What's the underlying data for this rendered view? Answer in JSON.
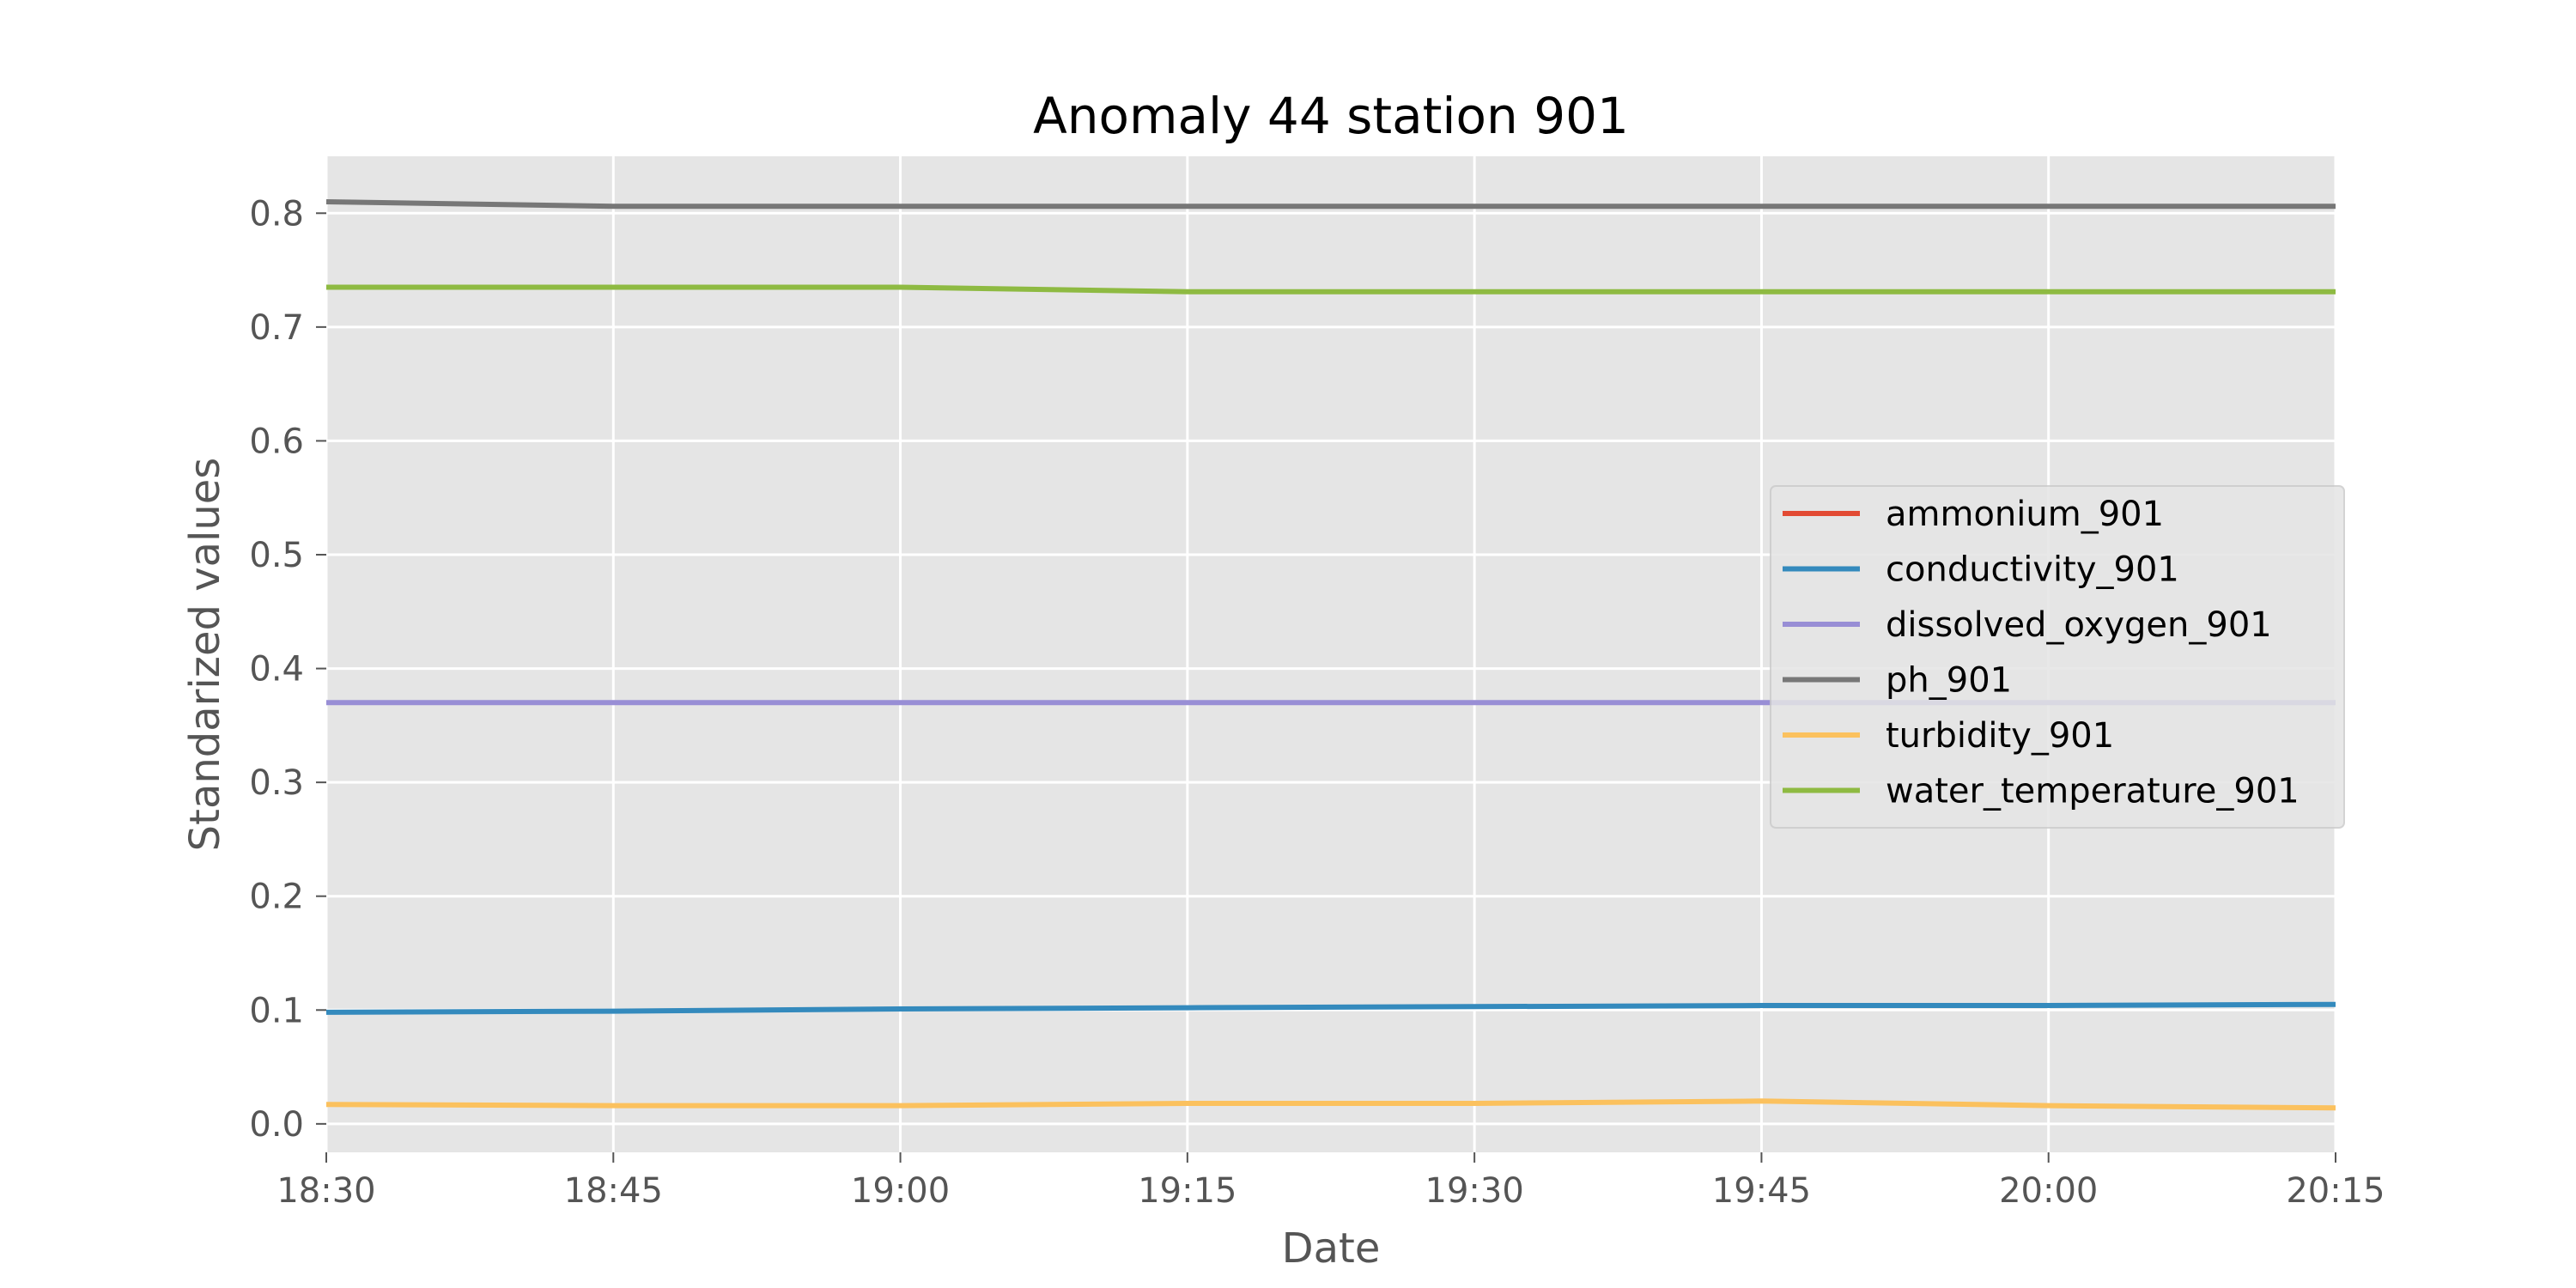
{
  "chart_data": {
    "type": "line",
    "title": "Anomaly 44 station 901",
    "xlabel": "Date",
    "ylabel": "Standarized values",
    "x": [
      "18:30",
      "18:45",
      "19:00",
      "19:15",
      "19:30",
      "19:45",
      "20:00",
      "20:15"
    ],
    "x_ticks": [
      "18:30",
      "18:45",
      "19:00",
      "19:15",
      "19:30",
      "19:45",
      "20:00",
      "20:15"
    ],
    "ylim": [
      -0.025,
      0.85
    ],
    "y_ticks": [
      "0.0",
      "0.1",
      "0.2",
      "0.3",
      "0.4",
      "0.5",
      "0.6",
      "0.7",
      "0.8"
    ],
    "grid": true,
    "legend_position": "center-right",
    "series": [
      {
        "name": "ammonium_901",
        "color": "#E24A33",
        "values": [
          null,
          null,
          null,
          null,
          null,
          null,
          null,
          null
        ]
      },
      {
        "name": "conductivity_901",
        "color": "#348ABD",
        "values": [
          0.098,
          0.099,
          0.101,
          0.102,
          0.103,
          0.104,
          0.104,
          0.105
        ]
      },
      {
        "name": "dissolved_oxygen_901",
        "color": "#988ED5",
        "values": [
          0.37,
          0.37,
          0.37,
          0.37,
          0.37,
          0.37,
          0.37,
          0.37
        ]
      },
      {
        "name": "ph_901",
        "color": "#777777",
        "values": [
          0.81,
          0.806,
          0.806,
          0.806,
          0.806,
          0.806,
          0.806,
          0.806
        ]
      },
      {
        "name": "turbidity_901",
        "color": "#FBC15E",
        "values": [
          0.017,
          0.016,
          0.016,
          0.018,
          0.018,
          0.02,
          0.016,
          0.014
        ]
      },
      {
        "name": "water_temperature_901",
        "color": "#8EBA42",
        "values": [
          0.735,
          0.735,
          0.735,
          0.731,
          0.731,
          0.731,
          0.731,
          0.731
        ]
      }
    ]
  }
}
